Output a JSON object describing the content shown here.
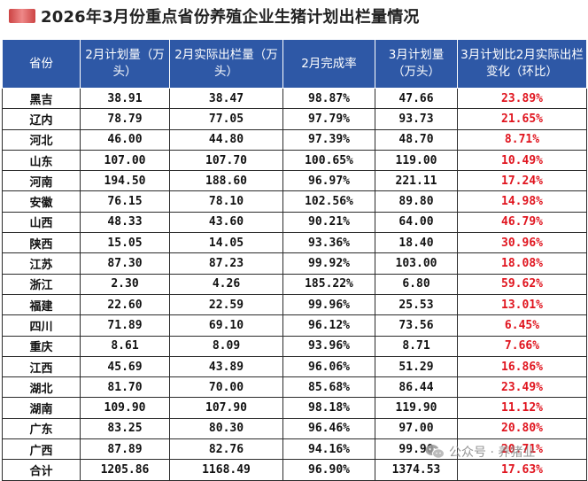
{
  "title": "2026年3月份重点省份养殖企业生猪计划出栏量情况",
  "colors": {
    "header_bg": "#2e58a6",
    "header_text": "#ffffff",
    "ratio_red": "#e0141e"
  },
  "table": {
    "headers": [
      "省份",
      "2月计划量（万头）",
      "2月实际出栏量（万头）",
      "2月完成率",
      "3月计划量（万头）",
      "3月计划比2月实际出栏变化（环比）"
    ],
    "rows": [
      [
        "黑吉",
        "38.91",
        "38.47",
        "98.87%",
        "47.66",
        "23.89%"
      ],
      [
        "辽内",
        "78.79",
        "77.05",
        "97.79%",
        "93.73",
        "21.65%"
      ],
      [
        "河北",
        "46.00",
        "44.80",
        "97.39%",
        "48.70",
        "8.71%"
      ],
      [
        "山东",
        "107.00",
        "107.70",
        "100.65%",
        "119.00",
        "10.49%"
      ],
      [
        "河南",
        "194.50",
        "188.60",
        "96.97%",
        "221.11",
        "17.24%"
      ],
      [
        "安徽",
        "76.15",
        "78.10",
        "102.56%",
        "89.80",
        "14.98%"
      ],
      [
        "山西",
        "48.33",
        "43.60",
        "90.21%",
        "64.00",
        "46.79%"
      ],
      [
        "陕西",
        "15.05",
        "14.05",
        "93.36%",
        "18.40",
        "30.96%"
      ],
      [
        "江苏",
        "87.30",
        "87.23",
        "99.92%",
        "103.00",
        "18.08%"
      ],
      [
        "浙江",
        "2.30",
        "4.26",
        "185.22%",
        "6.80",
        "59.62%"
      ],
      [
        "福建",
        "22.60",
        "22.59",
        "99.96%",
        "25.53",
        "13.01%"
      ],
      [
        "四川",
        "71.89",
        "69.10",
        "96.12%",
        "73.56",
        "6.45%"
      ],
      [
        "重庆",
        "8.61",
        "8.09",
        "93.96%",
        "8.71",
        "7.66%"
      ],
      [
        "江西",
        "45.69",
        "43.89",
        "96.06%",
        "51.29",
        "16.86%"
      ],
      [
        "湖北",
        "81.70",
        "70.00",
        "85.68%",
        "86.44",
        "23.49%"
      ],
      [
        "湖南",
        "109.90",
        "107.90",
        "98.18%",
        "119.90",
        "11.12%"
      ],
      [
        "广东",
        "83.25",
        "80.30",
        "96.46%",
        "97.00",
        "20.80%"
      ],
      [
        "广西",
        "87.89",
        "82.76",
        "94.16%",
        "99.90",
        "20.71%"
      ],
      [
        "合计",
        "1205.86",
        "1168.49",
        "96.90%",
        "1374.53",
        "17.63%"
      ]
    ]
  },
  "watermark": {
    "text": "公众号 · 养猪业",
    "icon": "wechat-icon"
  }
}
